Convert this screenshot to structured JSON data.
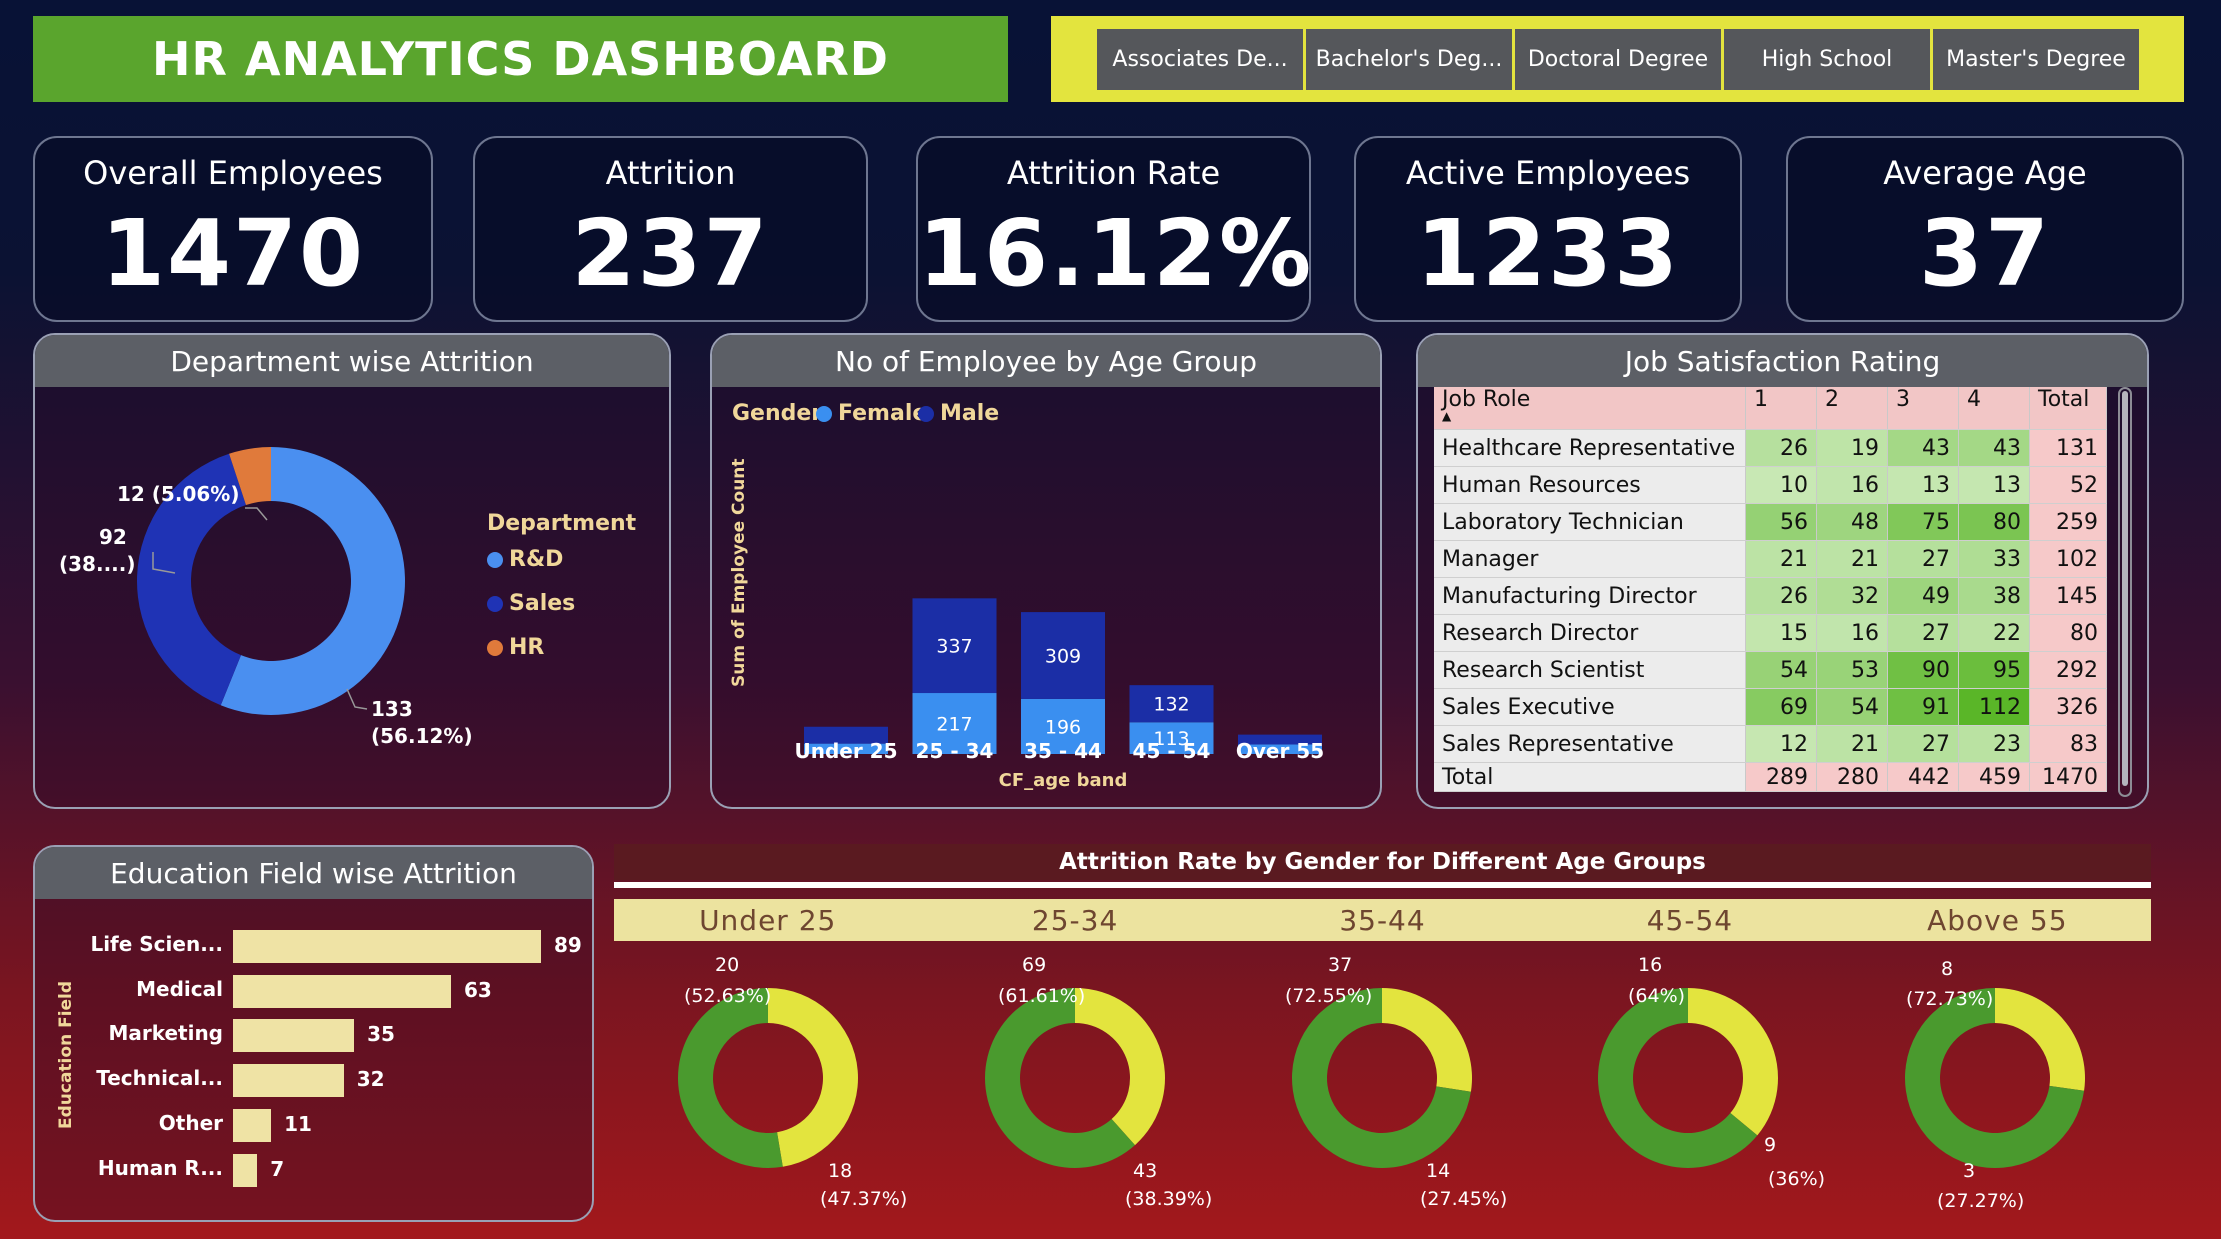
{
  "title": "HR ANALYTICS DASHBOARD",
  "education_filters": [
    "Associates De...",
    "Bachelor's Deg...",
    "Doctoral Degree",
    "High School",
    "Master's Degree"
  ],
  "kpis": [
    {
      "label": "Overall Employees",
      "value": "1470"
    },
    {
      "label": "Attrition",
      "value": "237"
    },
    {
      "label": "Attrition Rate",
      "value": "16.12%"
    },
    {
      "label": "Active Employees",
      "value": "1233"
    },
    {
      "label": "Average Age",
      "value": "37"
    }
  ],
  "dept": {
    "title": "Department wise Attrition",
    "legend_title": "Department",
    "legend": [
      "R&D",
      "Sales",
      "HR"
    ],
    "labels": {
      "hr": "12 (5.06%)",
      "sales_a": "92",
      "sales_b": "(38....)",
      "rd_a": "133",
      "rd_b": "(56.12%)"
    }
  },
  "agegroup": {
    "title": "No of Employee by Age Group",
    "legend_title": "Gender",
    "legend": [
      "Female",
      "Male"
    ],
    "ylabel": "Sum of Employee Count",
    "xlabel": "CF_age band"
  },
  "jobsat": {
    "title": "Job Satisfaction Rating",
    "headers": [
      "Job Role",
      "1",
      "2",
      "3",
      "4",
      "Total"
    ],
    "rows": [
      [
        "Healthcare Representative",
        "26",
        "19",
        "43",
        "43",
        "131"
      ],
      [
        "Human Resources",
        "10",
        "16",
        "13",
        "13",
        "52"
      ],
      [
        "Laboratory Technician",
        "56",
        "48",
        "75",
        "80",
        "259"
      ],
      [
        "Manager",
        "21",
        "21",
        "27",
        "33",
        "102"
      ],
      [
        "Manufacturing Director",
        "26",
        "32",
        "49",
        "38",
        "145"
      ],
      [
        "Research Director",
        "15",
        "16",
        "27",
        "22",
        "80"
      ],
      [
        "Research Scientist",
        "54",
        "53",
        "90",
        "95",
        "292"
      ],
      [
        "Sales Executive",
        "69",
        "54",
        "91",
        "112",
        "326"
      ],
      [
        "Sales Representative",
        "12",
        "21",
        "27",
        "23",
        "83"
      ]
    ],
    "total": [
      "Total",
      "289",
      "280",
      "442",
      "459",
      "1470"
    ]
  },
  "edu": {
    "title": "Education Field wise Attrition",
    "ylabel": "Education Field"
  },
  "gender_age": {
    "title": "Attrition Rate by Gender for Different Age Groups",
    "groups": [
      "Under 25",
      "25-34",
      "35-44",
      "45-54",
      "Above 55"
    ],
    "labels": [
      {
        "top_a": "20",
        "top_b": "(52.63%)",
        "bot_a": "18",
        "bot_b": "(47.37%)"
      },
      {
        "top_a": "69",
        "top_b": "(61.61%)",
        "bot_a": "43",
        "bot_b": "(38.39%)"
      },
      {
        "top_a": "37",
        "top_b": "(72.55%)",
        "bot_a": "14",
        "bot_b": "(27.45%)"
      },
      {
        "top_a": "16",
        "top_b": "(64%)",
        "bot_a": "9",
        "bot_b": "(36%)"
      },
      {
        "top_a": "8",
        "top_b": "(72.73%)",
        "bot_a": "3",
        "bot_b": "(27.27%)"
      }
    ]
  },
  "colors": {
    "rd": "#4a8ff0",
    "sales": "#1f33b5",
    "hr": "#e07a3b",
    "female": "#3a8ff0",
    "male": "#1b2ea6",
    "male_share": "#4a9a2e",
    "female_share": "#e3e43e"
  },
  "chart_data": [
    {
      "type": "pie",
      "title": "Department wise Attrition",
      "categories": [
        "R&D",
        "Sales",
        "HR"
      ],
      "values": [
        133,
        92,
        12
      ],
      "percent": [
        56.12,
        38.82,
        5.06
      ]
    },
    {
      "type": "bar",
      "title": "No of Employee by Age Group",
      "stacked": true,
      "categories": [
        "Under 25",
        "25 - 34",
        "35 - 44",
        "45 - 54",
        "Over 55"
      ],
      "series": [
        {
          "name": "Female",
          "values": [
            37,
            217,
            196,
            113,
            34
          ]
        },
        {
          "name": "Male",
          "values": [
            60,
            337,
            309,
            132,
            35
          ]
        }
      ],
      "xlabel": "CF_age band",
      "ylabel": "Sum of Employee Count"
    },
    {
      "type": "bar",
      "orientation": "horizontal",
      "title": "Education Field wise Attrition",
      "categories": [
        "Life Scien...",
        "Medical",
        "Marketing",
        "Technical...",
        "Other",
        "Human R..."
      ],
      "values": [
        89,
        63,
        35,
        32,
        11,
        7
      ],
      "ylabel": "Education Field"
    },
    {
      "type": "pie",
      "title": "Attrition Rate by Gender for Different Age Groups",
      "groups": [
        "Under 25",
        "25-34",
        "35-44",
        "45-54",
        "Above 55"
      ],
      "series": [
        {
          "values": [
            20,
            69,
            37,
            16,
            8
          ],
          "percent": [
            52.63,
            61.61,
            72.55,
            64,
            72.73
          ]
        },
        {
          "values": [
            18,
            43,
            14,
            9,
            3
          ],
          "percent": [
            47.37,
            38.39,
            27.45,
            36,
            27.27
          ]
        }
      ]
    }
  ]
}
